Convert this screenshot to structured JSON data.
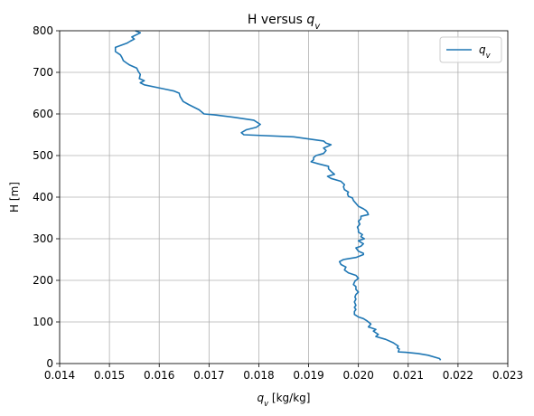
{
  "chart_data": {
    "type": "line",
    "title": "H versus q_v",
    "xlabel": "q_v [kg/kg]",
    "ylabel": "H [m]",
    "xlim": [
      0.014,
      0.023
    ],
    "ylim": [
      0,
      800
    ],
    "x_ticks": [
      "0.014",
      "0.015",
      "0.016",
      "0.017",
      "0.018",
      "0.019",
      "0.020",
      "0.021",
      "0.022",
      "0.023"
    ],
    "y_ticks": [
      "0",
      "100",
      "200",
      "300",
      "400",
      "500",
      "600",
      "700",
      "800"
    ],
    "grid": true,
    "legend": {
      "position": "top-right"
    },
    "series": [
      {
        "name": "q_v",
        "color": "#1f77b4",
        "points": [
          [
            0.02165,
            8
          ],
          [
            0.02163,
            12
          ],
          [
            0.0214,
            20
          ],
          [
            0.0212,
            24
          ],
          [
            0.02095,
            27
          ],
          [
            0.0208,
            28
          ],
          [
            0.02082,
            35
          ],
          [
            0.02078,
            38
          ],
          [
            0.0208,
            42
          ],
          [
            0.0207,
            50
          ],
          [
            0.02055,
            58
          ],
          [
            0.02035,
            65
          ],
          [
            0.0204,
            70
          ],
          [
            0.0203,
            78
          ],
          [
            0.02035,
            82
          ],
          [
            0.0202,
            88
          ],
          [
            0.02025,
            95
          ],
          [
            0.02018,
            102
          ],
          [
            0.0201,
            108
          ],
          [
            0.02,
            112
          ],
          [
            0.01992,
            118
          ],
          [
            0.01992,
            125
          ],
          [
            0.01995,
            130
          ],
          [
            0.01992,
            135
          ],
          [
            0.01995,
            140
          ],
          [
            0.01992,
            148
          ],
          [
            0.01995,
            155
          ],
          [
            0.01993,
            160
          ],
          [
            0.01995,
            166
          ],
          [
            0.02,
            172
          ],
          [
            0.01995,
            178
          ],
          [
            0.01995,
            185
          ],
          [
            0.0199,
            190
          ],
          [
            0.01993,
            198
          ],
          [
            0.02,
            205
          ],
          [
            0.01995,
            212
          ],
          [
            0.0198,
            218
          ],
          [
            0.01972,
            225
          ],
          [
            0.01975,
            232
          ],
          [
            0.01965,
            238
          ],
          [
            0.01962,
            245
          ],
          [
            0.0197,
            250
          ],
          [
            0.01995,
            255
          ],
          [
            0.0201,
            262
          ],
          [
            0.0201,
            265
          ],
          [
            0.02,
            270
          ],
          [
            0.01995,
            278
          ],
          [
            0.02005,
            282
          ],
          [
            0.0201,
            288
          ],
          [
            0.02,
            295
          ],
          [
            0.02012,
            300
          ],
          [
            0.02005,
            305
          ],
          [
            0.02008,
            310
          ],
          [
            0.02,
            316
          ],
          [
            0.02,
            322
          ],
          [
            0.01998,
            328
          ],
          [
            0.02003,
            335
          ],
          [
            0.02,
            342
          ],
          [
            0.02005,
            348
          ],
          [
            0.02005,
            354
          ],
          [
            0.0202,
            358
          ],
          [
            0.02018,
            364
          ],
          [
            0.02015,
            368
          ],
          [
            0.0201,
            372
          ],
          [
            0.02,
            378
          ],
          [
            0.01995,
            385
          ],
          [
            0.0199,
            392
          ],
          [
            0.01988,
            398
          ],
          [
            0.0198,
            402
          ],
          [
            0.01978,
            408
          ],
          [
            0.0198,
            412
          ],
          [
            0.01972,
            418
          ],
          [
            0.0197,
            425
          ],
          [
            0.01972,
            430
          ],
          [
            0.01965,
            438
          ],
          [
            0.01945,
            445
          ],
          [
            0.01938,
            450
          ],
          [
            0.01952,
            455
          ],
          [
            0.01945,
            462
          ],
          [
            0.0194,
            468
          ],
          [
            0.0194,
            474
          ],
          [
            0.0192,
            480
          ],
          [
            0.01905,
            485
          ],
          [
            0.0191,
            490
          ],
          [
            0.0191,
            495
          ],
          [
            0.01915,
            500
          ],
          [
            0.0193,
            505
          ],
          [
            0.01935,
            512
          ],
          [
            0.0193,
            518
          ],
          [
            0.01938,
            522
          ],
          [
            0.01945,
            526
          ],
          [
            0.01935,
            530
          ],
          [
            0.0193,
            535
          ],
          [
            0.0187,
            545
          ],
          [
            0.0177,
            550
          ],
          [
            0.01765,
            555
          ],
          [
            0.01775,
            562
          ],
          [
            0.01795,
            568
          ],
          [
            0.01803,
            575
          ],
          [
            0.0179,
            585
          ],
          [
            0.0175,
            592
          ],
          [
            0.0171,
            598
          ],
          [
            0.0169,
            600
          ],
          [
            0.0168,
            610
          ],
          [
            0.0166,
            622
          ],
          [
            0.01648,
            630
          ],
          [
            0.01642,
            642
          ],
          [
            0.0164,
            650
          ],
          [
            0.0163,
            655
          ],
          [
            0.0161,
            660
          ],
          [
            0.0157,
            670
          ],
          [
            0.01562,
            675
          ],
          [
            0.0157,
            680
          ],
          [
            0.0156,
            685
          ],
          [
            0.01562,
            695
          ],
          [
            0.01558,
            702
          ],
          [
            0.01555,
            710
          ],
          [
            0.0154,
            718
          ],
          [
            0.01535,
            722
          ],
          [
            0.01528,
            728
          ],
          [
            0.01525,
            736
          ],
          [
            0.01522,
            742
          ],
          [
            0.01512,
            750
          ],
          [
            0.01512,
            760
          ],
          [
            0.01535,
            770
          ],
          [
            0.01542,
            775
          ],
          [
            0.0155,
            780
          ],
          [
            0.01545,
            785
          ],
          [
            0.01562,
            795
          ],
          [
            0.01552,
            800
          ]
        ]
      }
    ]
  }
}
